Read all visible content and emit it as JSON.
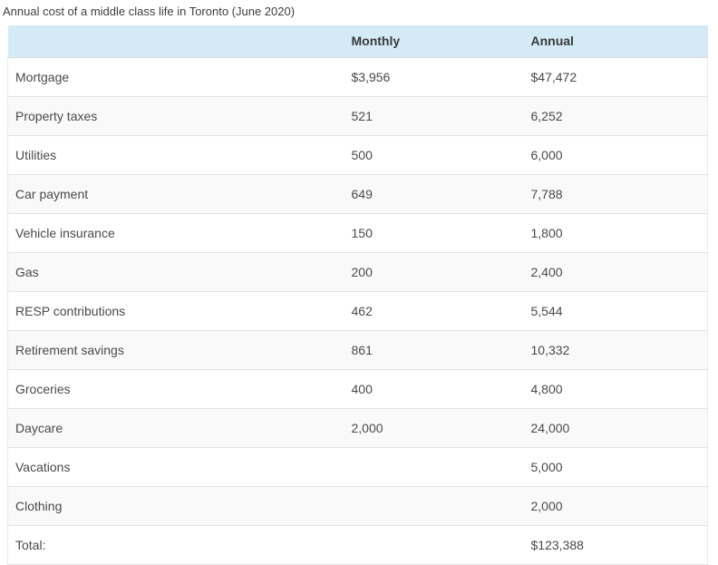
{
  "page": {
    "title": "Annual cost of a middle class life in Toronto (June 2020)"
  },
  "colors": {
    "header_bg": "#d4eaf6",
    "stripe_bg": "#f9f9f9",
    "row_border": "#e2e2e2",
    "header_text": "#3a3a3a",
    "body_text": "#4a4a4a"
  },
  "table": {
    "headers": {
      "item": "",
      "monthly": "Monthly",
      "annual": "Annual"
    },
    "rows": [
      {
        "label": "Mortgage",
        "monthly": "$3,956",
        "annual": "$47,472"
      },
      {
        "label": "Property taxes",
        "monthly": "521",
        "annual": "6,252"
      },
      {
        "label": "Utilities",
        "monthly": "500",
        "annual": "6,000"
      },
      {
        "label": "Car payment",
        "monthly": "649",
        "annual": "7,788"
      },
      {
        "label": "Vehicle insurance",
        "monthly": "150",
        "annual": "1,800"
      },
      {
        "label": "Gas",
        "monthly": "200",
        "annual": "2,400"
      },
      {
        "label": "RESP contributions",
        "monthly": "462",
        "annual": "5,544"
      },
      {
        "label": "Retirement savings",
        "monthly": "861",
        "annual": "10,332"
      },
      {
        "label": "Groceries",
        "monthly": "400",
        "annual": "4,800"
      },
      {
        "label": "Daycare",
        "monthly": "2,000",
        "annual": "24,000"
      },
      {
        "label": "Vacations",
        "monthly": "",
        "annual": "5,000"
      },
      {
        "label": "Clothing",
        "monthly": "",
        "annual": "2,000"
      },
      {
        "label": "Total:",
        "monthly": "",
        "annual": "$123,388"
      }
    ]
  },
  "chart_data": {
    "type": "table",
    "title": "Annual cost of a middle class life in Toronto (June 2020)",
    "columns": [
      "",
      "Monthly",
      "Annual"
    ],
    "categories": [
      "Mortgage",
      "Property taxes",
      "Utilities",
      "Car payment",
      "Vehicle insurance",
      "Gas",
      "RESP contributions",
      "Retirement savings",
      "Groceries",
      "Daycare",
      "Vacations",
      "Clothing"
    ],
    "series": [
      {
        "name": "Monthly",
        "values": [
          3956,
          521,
          500,
          649,
          150,
          200,
          462,
          861,
          400,
          2000,
          null,
          null
        ]
      },
      {
        "name": "Annual",
        "values": [
          47472,
          6252,
          6000,
          7788,
          1800,
          2400,
          5544,
          10332,
          4800,
          24000,
          5000,
          2000
        ]
      }
    ],
    "total": {
      "label": "Total:",
      "annual": 123388
    },
    "currency": "$"
  }
}
